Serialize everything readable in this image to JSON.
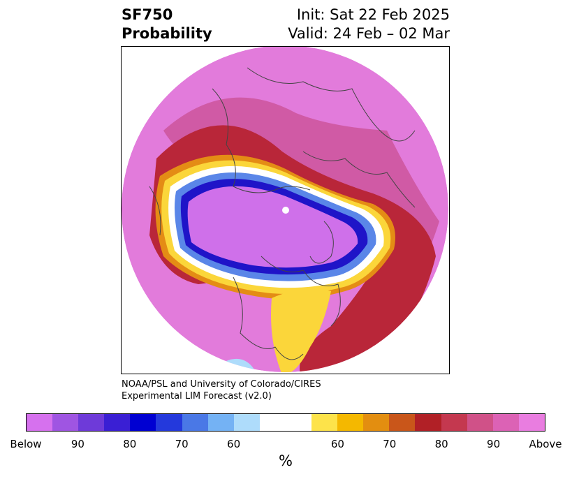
{
  "header": {
    "variable": "SF750",
    "product": "Probability",
    "init": "Init: Sat 22 Feb 2025",
    "valid": "Valid: 24 Feb – 02 Mar"
  },
  "credit": {
    "line1": "NOAA/PSL and University of Colorado/CIRES",
    "line2": "Experimental LIM Forecast (v2.0)"
  },
  "colorbar": {
    "colors": [
      "#d671ee",
      "#9f55e2",
      "#6e3ad9",
      "#3a1fd4",
      "#0000d2",
      "#2439dc",
      "#4a78e6",
      "#74b2f4",
      "#aedcfb",
      "#ffffff",
      "#ffffff",
      "#fde34a",
      "#f4b800",
      "#e38e10",
      "#c9561a",
      "#b12026",
      "#c4384f",
      "#d05188",
      "#dc62b5",
      "#e97de0"
    ],
    "tick_labels": [
      "Below",
      "90",
      "80",
      "70",
      "60",
      "60",
      "70",
      "80",
      "90",
      "Above"
    ],
    "unit": "%"
  },
  "map": {
    "projection": "north-polar-stereographic",
    "colors": {
      "far_above": "#e27bdb",
      "above_mid": "#d05aa5",
      "above_red": "#b92639",
      "orange": "#e48c15",
      "yellow": "#fbd63a",
      "below_deep": "#1f14c8",
      "below_far": "#cf70ea",
      "light_blue": "#aedcfb",
      "coast": "#444444"
    }
  }
}
